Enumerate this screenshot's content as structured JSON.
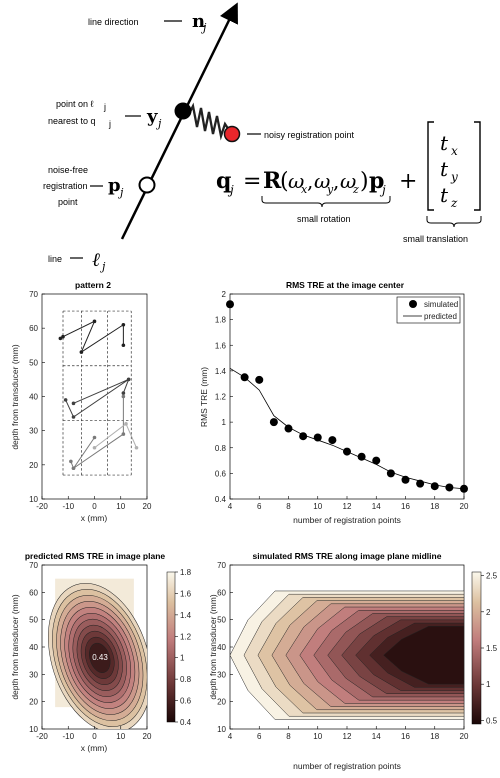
{
  "diagram": {
    "labels": {
      "line_direction": "line direction",
      "n_sym": "n",
      "n_sub": "j",
      "point_on_line_1": "point on ℓ",
      "point_on_line_1_sub": "j",
      "point_on_line_2": "nearest to q",
      "point_on_line_2_sub": "j",
      "y_sym": "y",
      "y_sub": "j",
      "noisy_point": "noisy registration point",
      "noise_free_1": "noise-free",
      "noise_free_2": "registration",
      "noise_free_3": "point",
      "p_sym": "p",
      "p_sub": "j",
      "line_word": "line",
      "ell_sym": "ℓ",
      "ell_sub": "j",
      "small_rotation": "small rotation",
      "small_translation": "small translation"
    },
    "equation": {
      "lhs": "q",
      "lhs_sub": "j",
      "equals": "=",
      "R": "R",
      "open": "(",
      "wx": "ω",
      "wx_sub": "x",
      "comma1": ",",
      "wy": "ω",
      "wy_sub": "y",
      "comma2": ",",
      "wz": "ω",
      "wz_sub": "z",
      "close": ")",
      "p": "p",
      "p_sub": "j",
      "plus": "+",
      "t": "t",
      "tx_sub": "x",
      "ty_sub": "y",
      "tz_sub": "z"
    },
    "colors": {
      "noisy_point": "#e8262b",
      "spring": "#222222"
    }
  },
  "panels": {
    "pattern": {
      "title": "pattern 2",
      "xlabel": "x (mm)",
      "ylabel": "depth from transducer (mm)"
    },
    "rms_center": {
      "title": "RMS TRE at the image center",
      "xlabel": "number of registration points",
      "ylabel": "RMS TRE (mm)",
      "legend_simulated": "simulated",
      "legend_predicted": "predicted"
    },
    "predicted_plane": {
      "title": "predicted RMS TRE in image plane",
      "xlabel": "x (mm)",
      "ylabel": "depth from transducer (mm)",
      "center_value": "0.43"
    },
    "simulated_midline": {
      "title": "simulated RMS TRE along image plane midline",
      "xlabel": "number of registration points",
      "ylabel": "depth from transducer (mm)"
    }
  },
  "chart_data": [
    {
      "type": "line",
      "title": "pattern 2",
      "xlabel": "x (mm)",
      "ylabel": "depth from transducer (mm)",
      "xlim": [
        -20,
        20
      ],
      "ylim": [
        10,
        70
      ],
      "xticks": [
        "-20",
        "-10",
        "0",
        "10",
        "20"
      ],
      "yticks": [
        "10",
        "20",
        "30",
        "40",
        "50",
        "60",
        "70"
      ],
      "grid_cells_x": [
        -12,
        -5,
        5,
        14
      ],
      "grid_cells_y": [
        17,
        33,
        49,
        65
      ],
      "series": [
        {
          "color": "#202020",
          "x": [
            -13,
            -12,
            0,
            -5,
            11,
            11
          ],
          "y": [
            57,
            57.5,
            62,
            53,
            61,
            55
          ]
        },
        {
          "color": "#404040",
          "x": [
            -11,
            -8,
            13,
            -8,
            13,
            11
          ],
          "y": [
            39,
            34,
            45,
            38,
            45,
            41
          ]
        },
        {
          "color": "#7a7a7a",
          "x": [
            -9,
            -8,
            0,
            -8,
            11,
            11
          ],
          "y": [
            21,
            19,
            28,
            19,
            29,
            40
          ]
        },
        {
          "color": "#b0b0b0",
          "x": [
            0,
            12,
            16
          ],
          "y": [
            25,
            32,
            25
          ]
        }
      ]
    },
    {
      "type": "scatter",
      "title": "RMS TRE at the image center",
      "xlabel": "number of registration points",
      "ylabel": "RMS TRE (mm)",
      "xlim": [
        4,
        20
      ],
      "ylim": [
        0.4,
        2.0
      ],
      "xticks": [
        "4",
        "6",
        "8",
        "10",
        "12",
        "14",
        "16",
        "18",
        "20"
      ],
      "yticks": [
        "0.4",
        "0.6",
        "0.8",
        "1",
        "1.2",
        "1.4",
        "1.6",
        "1.8",
        "2"
      ],
      "legend": "top-right",
      "series": [
        {
          "name": "simulated",
          "x": [
            4,
            5,
            6,
            7,
            8,
            9,
            10,
            11,
            12,
            13,
            14,
            15,
            16,
            17,
            18,
            19,
            20
          ],
          "y": [
            1.92,
            1.35,
            1.33,
            1.0,
            0.95,
            0.89,
            0.88,
            0.86,
            0.77,
            0.73,
            0.7,
            0.6,
            0.55,
            0.52,
            0.5,
            0.49,
            0.48
          ]
        },
        {
          "name": "predicted",
          "x": [
            4,
            5,
            6,
            7,
            8,
            9,
            10,
            11,
            12,
            13,
            14,
            15,
            16,
            17,
            18,
            19,
            20
          ],
          "y": [
            1.42,
            1.35,
            1.25,
            1.05,
            0.96,
            0.9,
            0.86,
            0.82,
            0.77,
            0.72,
            0.67,
            0.61,
            0.57,
            0.54,
            0.51,
            0.49,
            0.48
          ]
        }
      ]
    },
    {
      "type": "heatmap",
      "title": "predicted RMS TRE in image plane",
      "xlabel": "x (mm)",
      "ylabel": "depth from transducer (mm)",
      "xlim": [
        -20,
        20
      ],
      "ylim": [
        10,
        70
      ],
      "xticks": [
        "-20",
        "-10",
        "0",
        "10",
        "20"
      ],
      "yticks": [
        "10",
        "20",
        "30",
        "40",
        "50",
        "60",
        "70"
      ],
      "extent_x": [
        -15,
        15
      ],
      "extent_y": [
        18,
        65
      ],
      "minimum": {
        "x": 2,
        "y": 36,
        "value": 0.43
      },
      "colorbar_ticks": [
        "0.4",
        "0.6",
        "0.8",
        "1",
        "1.2",
        "1.4",
        "1.6",
        "1.8"
      ],
      "colorbar_range": [
        0.4,
        1.8
      ]
    },
    {
      "type": "heatmap",
      "title": "simulated RMS TRE along image plane midline",
      "xlabel": "number of registration points",
      "ylabel": "depth from transducer (mm)",
      "xlim": [
        4,
        20
      ],
      "ylim": [
        10,
        70
      ],
      "xticks": [
        "4",
        "6",
        "8",
        "10",
        "12",
        "14",
        "16",
        "18",
        "20"
      ],
      "yticks": [
        "10",
        "20",
        "30",
        "40",
        "50",
        "60",
        "70"
      ],
      "extent_y": [
        18,
        65
      ],
      "colorbar_ticks": [
        "0.5",
        "1",
        "1.5",
        "2",
        "2.5"
      ],
      "colorbar_range": [
        0.45,
        2.55
      ]
    }
  ]
}
